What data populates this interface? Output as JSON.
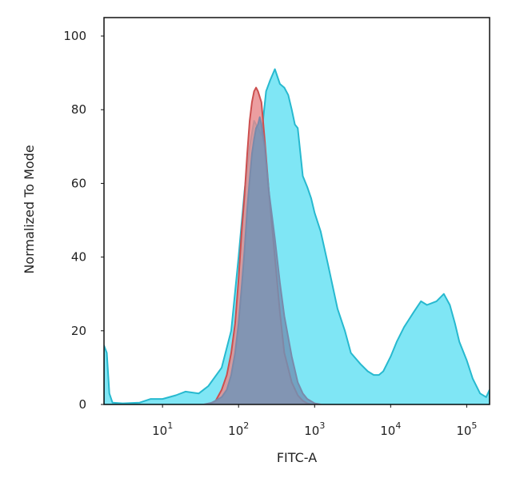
{
  "chart_data": {
    "type": "area",
    "title": "",
    "xlabel": "FITC-A",
    "ylabel": "Normalized To Mode",
    "x_scale": "log",
    "xlim": [
      1.7,
      200000
    ],
    "ylim": [
      0,
      105
    ],
    "grid": false,
    "legend": "none",
    "yticks": [
      0,
      20,
      40,
      60,
      80,
      100
    ],
    "xticks": [
      {
        "base": "10",
        "exp": "1",
        "value": 10
      },
      {
        "base": "10",
        "exp": "2",
        "value": 100
      },
      {
        "base": "10",
        "exp": "3",
        "value": 1000
      },
      {
        "base": "10",
        "exp": "4",
        "value": 10000
      },
      {
        "base": "10",
        "exp": "5",
        "value": 100000
      }
    ],
    "series": [
      {
        "fill": "#7fe6f5",
        "stroke": "#27b9cf",
        "points": [
          [
            1.7,
            16
          ],
          [
            1.85,
            14
          ],
          [
            2.0,
            3
          ],
          [
            2.2,
            0.5
          ],
          [
            3,
            0.3
          ],
          [
            5,
            0.5
          ],
          [
            7,
            1.5
          ],
          [
            10,
            1.5
          ],
          [
            15,
            2.5
          ],
          [
            20,
            3.5
          ],
          [
            30,
            3
          ],
          [
            40,
            5
          ],
          [
            60,
            10
          ],
          [
            80,
            20
          ],
          [
            100,
            40
          ],
          [
            120,
            58
          ],
          [
            140,
            70
          ],
          [
            160,
            77
          ],
          [
            180,
            75
          ],
          [
            200,
            73
          ],
          [
            230,
            85
          ],
          [
            260,
            88
          ],
          [
            300,
            91
          ],
          [
            350,
            87
          ],
          [
            400,
            86
          ],
          [
            450,
            84
          ],
          [
            500,
            80
          ],
          [
            550,
            76
          ],
          [
            600,
            75
          ],
          [
            700,
            62
          ],
          [
            800,
            59
          ],
          [
            900,
            56
          ],
          [
            1000,
            52
          ],
          [
            1200,
            47
          ],
          [
            1500,
            38
          ],
          [
            2000,
            26
          ],
          [
            2500,
            20
          ],
          [
            3000,
            14
          ],
          [
            4000,
            11
          ],
          [
            5000,
            9
          ],
          [
            6000,
            8
          ],
          [
            7000,
            8
          ],
          [
            8000,
            9
          ],
          [
            10000,
            13
          ],
          [
            12000,
            17
          ],
          [
            15000,
            21
          ],
          [
            20000,
            25
          ],
          [
            25000,
            28
          ],
          [
            30000,
            27
          ],
          [
            40000,
            28
          ],
          [
            50000,
            30
          ],
          [
            60000,
            27
          ],
          [
            70000,
            22
          ],
          [
            80000,
            17
          ],
          [
            100000,
            12
          ],
          [
            120000,
            7
          ],
          [
            150000,
            3
          ],
          [
            180000,
            2
          ],
          [
            200000,
            4
          ]
        ]
      },
      {
        "fill": "#e8898b",
        "stroke": "#cc4f4f",
        "points": [
          [
            40,
            0
          ],
          [
            50,
            1
          ],
          [
            60,
            4
          ],
          [
            70,
            8
          ],
          [
            80,
            14
          ],
          [
            90,
            22
          ],
          [
            100,
            34
          ],
          [
            110,
            47
          ],
          [
            120,
            57
          ],
          [
            130,
            68
          ],
          [
            140,
            77
          ],
          [
            150,
            82
          ],
          [
            160,
            85
          ],
          [
            170,
            86
          ],
          [
            180,
            85
          ],
          [
            200,
            82
          ],
          [
            220,
            72
          ],
          [
            250,
            58
          ],
          [
            300,
            40
          ],
          [
            350,
            25
          ],
          [
            400,
            14
          ],
          [
            500,
            6
          ],
          [
            600,
            2.5
          ],
          [
            700,
            1
          ],
          [
            800,
            0.3
          ],
          [
            900,
            0
          ]
        ]
      },
      {
        "fill": "#6f94b7",
        "stroke": "#7a8aaa",
        "points": [
          [
            35,
            0
          ],
          [
            45,
            0.5
          ],
          [
            60,
            2
          ],
          [
            70,
            4
          ],
          [
            80,
            8
          ],
          [
            90,
            14
          ],
          [
            100,
            22
          ],
          [
            110,
            32
          ],
          [
            120,
            42
          ],
          [
            130,
            53
          ],
          [
            140,
            61
          ],
          [
            150,
            68
          ],
          [
            160,
            72
          ],
          [
            170,
            75
          ],
          [
            180,
            76
          ],
          [
            190,
            78
          ],
          [
            200,
            76
          ],
          [
            220,
            70
          ],
          [
            250,
            58
          ],
          [
            300,
            45
          ],
          [
            350,
            33
          ],
          [
            400,
            24
          ],
          [
            500,
            13
          ],
          [
            600,
            6
          ],
          [
            700,
            3
          ],
          [
            800,
            1.5
          ],
          [
            1000,
            0.3
          ],
          [
            1200,
            0
          ]
        ]
      }
    ]
  }
}
